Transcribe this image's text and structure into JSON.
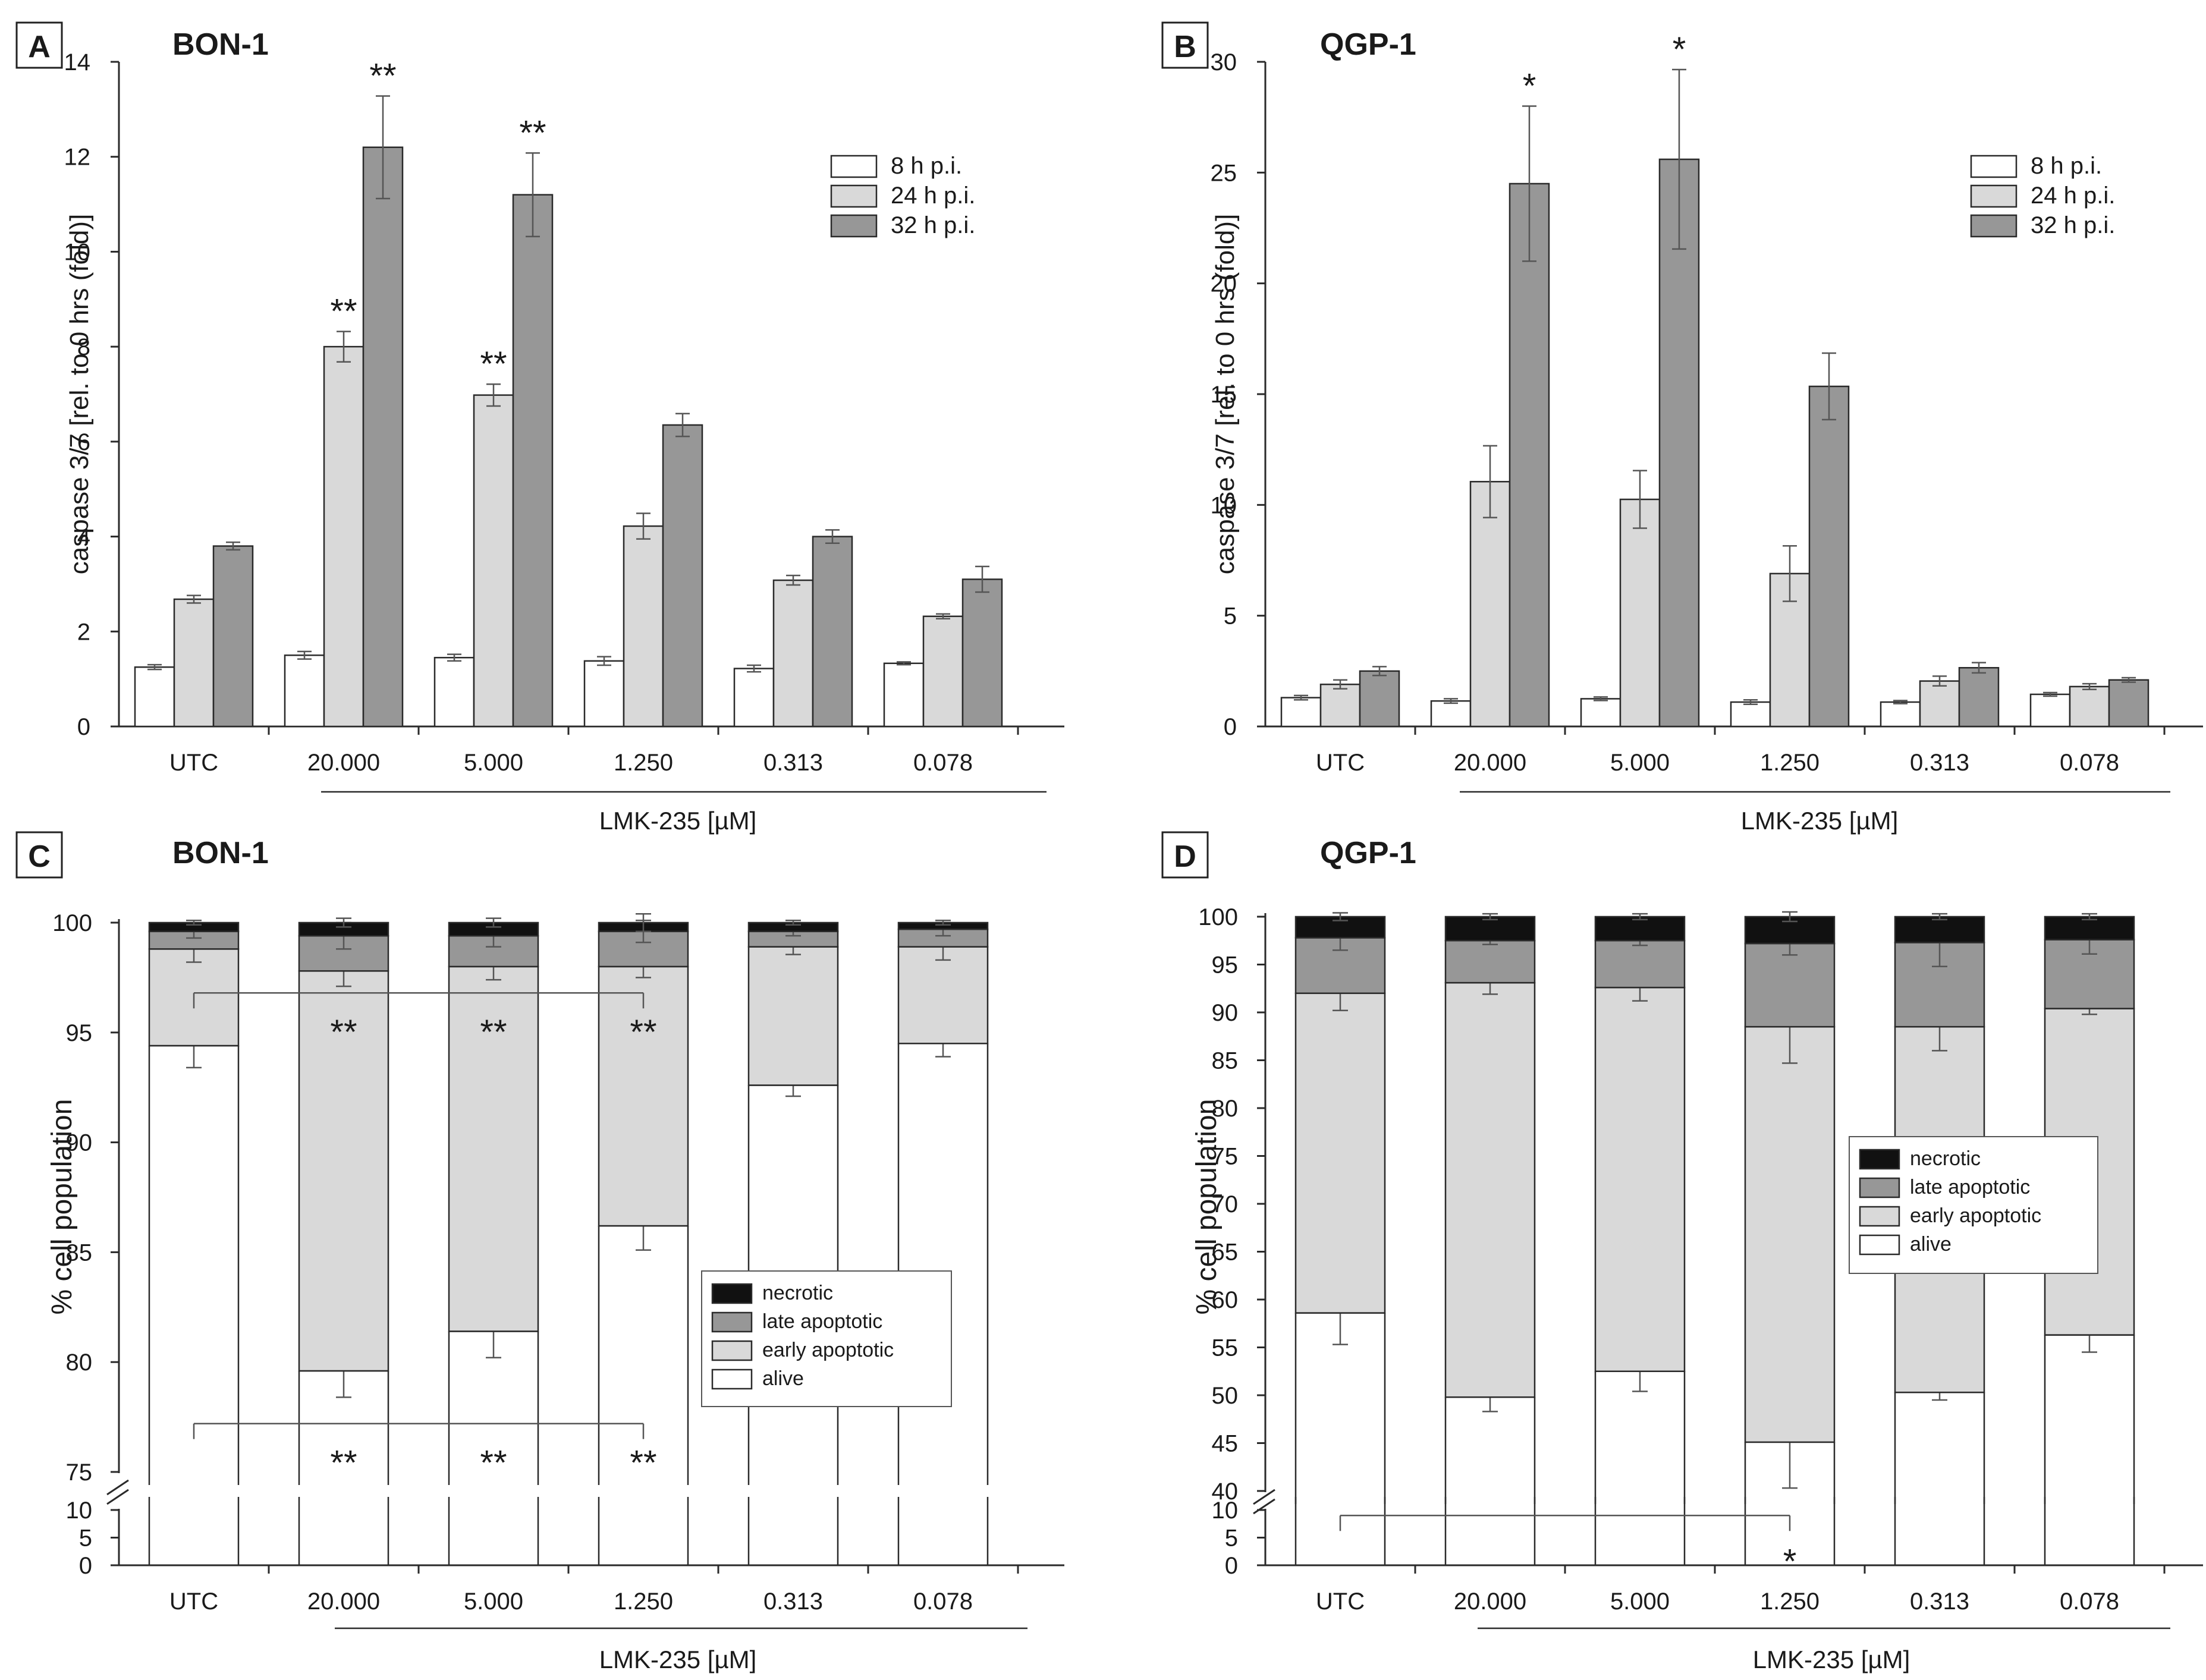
{
  "figure": {
    "colors": {
      "white": "#ffffff",
      "light": "#d9d9d9",
      "medium": "#979797",
      "black": "#111111",
      "stroke": "#2a2a2a",
      "err": "#555555"
    },
    "xlabel": "LMK-235 [µM]"
  },
  "chart_data": [
    {
      "panel": "A",
      "type": "bar",
      "title": "BON-1",
      "ylabel": "caspase 3/7 [rel. to 0 hrs (fold)]",
      "xlabel": "LMK-235 [µM]",
      "categories": [
        "UTC",
        "20.000",
        "5.000",
        "1.250",
        "0.313",
        "0.078"
      ],
      "ylim": [
        0,
        14
      ],
      "yticks": [
        0,
        2,
        4,
        6,
        8,
        10,
        12,
        14
      ],
      "legend_position": "top-right",
      "series": [
        {
          "name": "8 h p.i.",
          "color_key": "white",
          "values": [
            1.25,
            1.5,
            1.45,
            1.38,
            1.22,
            1.33
          ],
          "errors": [
            0.05,
            0.08,
            0.07,
            0.09,
            0.07,
            0.03
          ]
        },
        {
          "name": "24 h p.i.",
          "color_key": "light",
          "values": [
            2.68,
            8.0,
            6.98,
            4.22,
            3.08,
            2.32
          ],
          "errors": [
            0.08,
            0.32,
            0.23,
            0.27,
            0.1,
            0.05
          ]
        },
        {
          "name": "32 h p.i.",
          "color_key": "medium",
          "values": [
            3.8,
            12.2,
            11.2,
            6.35,
            4.0,
            3.1
          ],
          "errors": [
            0.08,
            1.08,
            0.88,
            0.24,
            0.14,
            0.27
          ]
        }
      ],
      "annotations": [
        {
          "category": 1,
          "series": 1,
          "text": "**"
        },
        {
          "category": 1,
          "series": 2,
          "text": "**"
        },
        {
          "category": 2,
          "series": 1,
          "text": "**"
        },
        {
          "category": 2,
          "series": 2,
          "text": "**"
        }
      ]
    },
    {
      "panel": "B",
      "type": "bar",
      "title": "QGP-1",
      "ylabel": "caspase 3/7 [rel. to 0 hrs (fold)]",
      "xlabel": "LMK-235 [µM]",
      "categories": [
        "UTC",
        "20.000",
        "5.000",
        "1.250",
        "0.313",
        "0.078"
      ],
      "ylim": [
        0,
        30
      ],
      "yticks": [
        0,
        5,
        10,
        15,
        20,
        25,
        30
      ],
      "legend_position": "top-right",
      "series": [
        {
          "name": "8 h p.i.",
          "color_key": "white",
          "values": [
            1.3,
            1.15,
            1.25,
            1.1,
            1.1,
            1.45
          ],
          "errors": [
            0.1,
            0.1,
            0.08,
            0.1,
            0.07,
            0.08
          ]
        },
        {
          "name": "24 h p.i.",
          "color_key": "light",
          "values": [
            1.9,
            11.05,
            10.25,
            6.9,
            2.05,
            1.8
          ],
          "errors": [
            0.2,
            1.62,
            1.3,
            1.25,
            0.22,
            0.13
          ]
        },
        {
          "name": "32 h p.i.",
          "color_key": "medium",
          "values": [
            2.5,
            24.5,
            25.6,
            15.35,
            2.65,
            2.1
          ],
          "errors": [
            0.2,
            3.5,
            4.05,
            1.5,
            0.23,
            0.1
          ]
        }
      ],
      "annotations": [
        {
          "category": 1,
          "series": 2,
          "text": "*"
        },
        {
          "category": 2,
          "series": 2,
          "text": "*"
        }
      ]
    },
    {
      "panel": "C",
      "type": "stacked_bar",
      "title": "BON-1",
      "ylabel": "% cell population",
      "xlabel": "LMK-235 [µM]",
      "categories": [
        "UTC",
        "20.000",
        "5.000",
        "1.250",
        "0.313",
        "0.078"
      ],
      "ylim_lower": [
        0,
        10
      ],
      "yticks_lower": [
        0,
        5,
        10
      ],
      "ylim_upper": [
        75,
        100
      ],
      "yticks_upper": [
        75,
        80,
        85,
        90,
        95,
        100
      ],
      "legend_position": "center-right",
      "legend_order": [
        "necrotic",
        "late apoptotic",
        "early apoptotic",
        "alive"
      ],
      "series": [
        {
          "name": "alive",
          "color_key": "white",
          "values": [
            94.4,
            79.6,
            81.4,
            86.2,
            92.6,
            94.5
          ],
          "errors": [
            1.0,
            1.2,
            1.2,
            1.1,
            0.5,
            0.6
          ]
        },
        {
          "name": "early apoptotic",
          "color_key": "light",
          "values": [
            4.4,
            18.2,
            16.6,
            11.8,
            6.3,
            4.4
          ],
          "errors": [
            0.6,
            0.7,
            0.6,
            0.5,
            0.35,
            0.6
          ]
        },
        {
          "name": "late apoptotic",
          "color_key": "medium",
          "values": [
            0.8,
            1.6,
            1.4,
            1.6,
            0.7,
            0.8
          ],
          "errors": [
            0.3,
            0.6,
            0.5,
            0.5,
            0.2,
            0.3
          ]
        },
        {
          "name": "necrotic",
          "color_key": "black",
          "values": [
            0.4,
            0.6,
            0.6,
            0.4,
            0.4,
            0.3
          ],
          "errors": [
            0.1,
            0.2,
            0.2,
            0.4,
            0.1,
            0.1
          ]
        }
      ],
      "annotations": [
        {
          "type": "bracket",
          "level": 96.8,
          "from": 0,
          "to": 3,
          "label_level": 95.4,
          "labels_at": [
            1,
            2,
            3
          ],
          "text": "**"
        },
        {
          "type": "bracket",
          "level": 77.2,
          "from": 0,
          "to": 3,
          "label_level": 75.8,
          "labels_at": [
            1,
            2,
            3
          ],
          "text": "**"
        }
      ]
    },
    {
      "panel": "D",
      "type": "stacked_bar",
      "title": "QGP-1",
      "ylabel": "% cell population",
      "xlabel": "LMK-235 [µM]",
      "categories": [
        "UTC",
        "20.000",
        "5.000",
        "1.250",
        "0.313",
        "0.078"
      ],
      "ylim_lower": [
        0,
        10
      ],
      "yticks_lower": [
        0,
        5,
        10
      ],
      "ylim_upper": [
        40,
        100
      ],
      "yticks_upper": [
        40,
        45,
        50,
        55,
        60,
        65,
        70,
        75,
        80,
        85,
        90,
        95,
        100
      ],
      "legend_position": "center-right",
      "legend_order": [
        "necrotic",
        "late apoptotic",
        "early apoptotic",
        "alive"
      ],
      "series": [
        {
          "name": "alive",
          "color_key": "white",
          "values": [
            58.6,
            49.8,
            52.5,
            45.1,
            50.3,
            56.3
          ],
          "errors": [
            3.3,
            1.5,
            2.1,
            4.8,
            0.8,
            1.8
          ]
        },
        {
          "name": "early apoptotic",
          "color_key": "light",
          "values": [
            33.4,
            43.3,
            40.1,
            43.4,
            38.2,
            34.1
          ],
          "errors": [
            1.8,
            1.2,
            1.4,
            3.8,
            2.5,
            0.6
          ]
        },
        {
          "name": "late apoptotic",
          "color_key": "medium",
          "values": [
            5.8,
            4.4,
            4.9,
            8.7,
            8.8,
            7.2
          ],
          "errors": [
            1.3,
            0.4,
            0.5,
            1.2,
            2.5,
            1.5
          ]
        },
        {
          "name": "necrotic",
          "color_key": "black",
          "values": [
            2.2,
            2.5,
            2.5,
            2.8,
            2.7,
            2.4
          ],
          "errors": [
            0.4,
            0.3,
            0.3,
            0.5,
            0.3,
            0.3
          ]
        }
      ],
      "annotations": [
        {
          "type": "bracket",
          "level": 9.0,
          "from": 0,
          "to": 3,
          "label_level": 2.2,
          "labels_at": [
            3
          ],
          "text": "*"
        }
      ]
    }
  ]
}
